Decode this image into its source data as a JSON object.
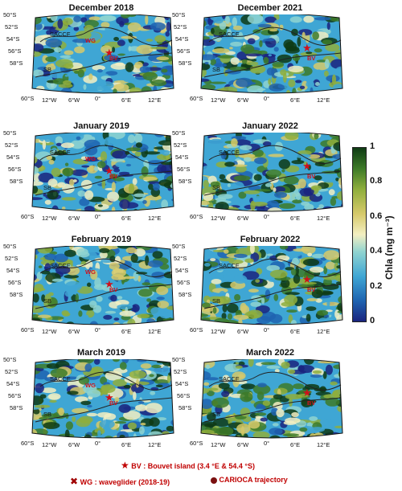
{
  "panels": [
    {
      "title": "December 2018",
      "labels": {
        "saccf": "SACCF",
        "sb": "SB",
        "wg": "WG",
        "bv": "BV"
      }
    },
    {
      "title": "December 2021",
      "labels": {
        "saccf": "SACCF",
        "sb": "SB",
        "wg": "",
        "bv": "BV"
      }
    },
    {
      "title": "January 2019",
      "labels": {
        "saccf": "SACCF",
        "sb": "SB",
        "wg": "WG",
        "bv": "BV"
      }
    },
    {
      "title": "January 2022",
      "labels": {
        "saccf": "SACCF",
        "sb": "SB",
        "wg": "",
        "bv": "BV"
      }
    },
    {
      "title": "February 2019",
      "labels": {
        "saccf": "SACCF",
        "sb": "SB",
        "wg": "WG",
        "bv": "BV"
      }
    },
    {
      "title": "February 2022",
      "labels": {
        "saccf": "SACCF",
        "sb": "SB",
        "wg": "",
        "bv": "BV"
      }
    },
    {
      "title": "March 2019",
      "labels": {
        "saccf": "SACCF",
        "sb": "SB",
        "wg": "WG",
        "bv": "BV"
      }
    },
    {
      "title": "March 2022",
      "labels": {
        "saccf": "SACCF",
        "sb": "SB",
        "wg": "",
        "bv": "BV"
      }
    }
  ],
  "lat_ticks": [
    "50°S",
    "52°S",
    "54°S",
    "56°S",
    "58°S",
    "60°S"
  ],
  "lon_ticks": [
    "12°W",
    "6°W",
    "0°",
    "6°E",
    "12°E"
  ],
  "colorbar": {
    "label": "Chla (mg m⁻³)",
    "ticks": [
      "1",
      "0.8",
      "0.6",
      "0.4",
      "0.2",
      "0"
    ],
    "min": 0,
    "max": 1
  },
  "legend": {
    "bv": "BV : Bouvet island (3.4 °E & 54.4 °S)",
    "wg": "WG : waveglider (2018-19)",
    "carioca": "CARIOCA trajectory"
  },
  "colors": {
    "marker": "#d0101a",
    "front_line": "#222222",
    "scale": [
      "#1a237e",
      "#1e63b0",
      "#3fa6d4",
      "#8fd3d0",
      "#f3efc2",
      "#d6c96a",
      "#8fae3c",
      "#3d7a28",
      "#0e3a14"
    ]
  }
}
